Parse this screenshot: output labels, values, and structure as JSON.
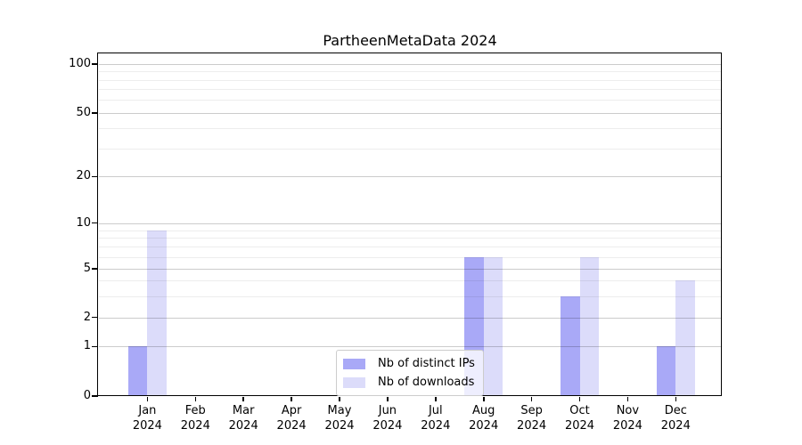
{
  "chart_data": {
    "type": "bar",
    "title": "PartheenMetaData 2024",
    "xlabel": "",
    "ylabel": "",
    "yscale": "symlog",
    "grid": true,
    "legend_position": "lower center",
    "categories": [
      "Jan",
      "Feb",
      "Mar",
      "Apr",
      "May",
      "Jun",
      "Jul",
      "Aug",
      "Sep",
      "Oct",
      "Nov",
      "Dec"
    ],
    "category_year": "2024",
    "series": [
      {
        "name": "Nb of distinct IPs",
        "color": "#a9a9f7",
        "values": [
          1,
          0,
          0,
          0,
          0,
          0,
          0,
          6,
          0,
          3,
          0,
          1
        ]
      },
      {
        "name": "Nb of downloads",
        "color": "#dcdcfa",
        "values": [
          9,
          0,
          0,
          0,
          0,
          0,
          0,
          6,
          0,
          6,
          0,
          4
        ]
      }
    ],
    "yticks": [
      0,
      1,
      2,
      5,
      10,
      20,
      50,
      100
    ],
    "minor_gridlines": [
      3,
      4,
      6,
      7,
      8,
      9,
      30,
      40,
      60,
      70,
      80,
      90
    ],
    "ylim": [
      0,
      117
    ]
  }
}
